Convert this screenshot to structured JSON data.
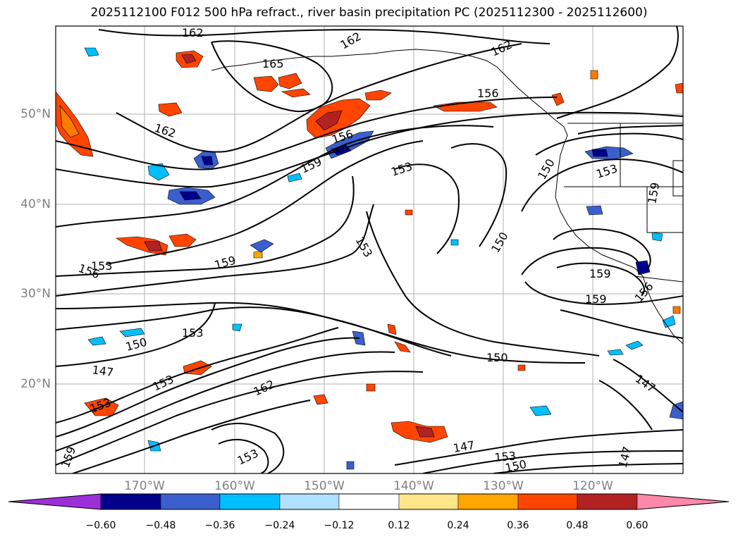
{
  "title": "2025112100 F012 500 hPa refract., river basin precipitation PC (2025112300 - 2025112600)",
  "lat_labels": [
    "50°N",
    "40°N",
    "30°N",
    "20°N"
  ],
  "lon_labels": [
    "170°W",
    "160°W",
    "150°W",
    "140°W",
    "130°W",
    "120°W"
  ],
  "contour_labels": [
    "162",
    "162",
    "162",
    "165",
    "156",
    "162",
    "156",
    "159",
    "153",
    "150",
    "153",
    "159",
    "153",
    "156",
    "153",
    "159",
    "150",
    "159",
    "159",
    "156",
    "153",
    "150",
    "150",
    "147",
    "147",
    "162",
    "153",
    "153",
    "147",
    "153",
    "150",
    "147",
    "159",
    "153"
  ],
  "colorbar": {
    "tick_labels": [
      "−0.60",
      "−0.48",
      "−0.36",
      "−0.24",
      "−0.12",
      "0.12",
      "0.24",
      "0.36",
      "0.48",
      "0.60"
    ],
    "colors": [
      "#9b30d9",
      "#00008b",
      "#3a5fcd",
      "#00bfff",
      "#b0e2ff",
      "#ffffff",
      "#ffe68a",
      "#ffa500",
      "#ff4500",
      "#b22222",
      "#ff88aa"
    ]
  }
}
